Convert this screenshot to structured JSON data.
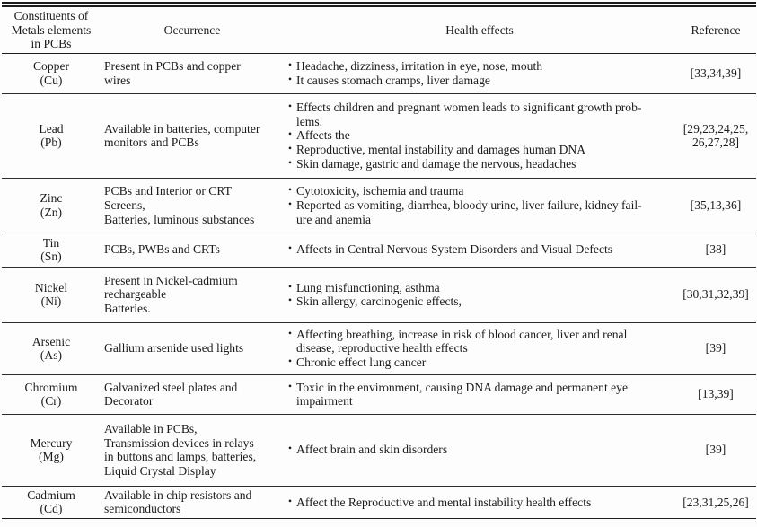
{
  "colors": {
    "text": "#1b1b1b",
    "rule": "#1c1c1c",
    "background": "#fdfdfd"
  },
  "bullet_glyph": "•",
  "table": {
    "columns": [
      {
        "label": "Constituents of\nMetals elements\nin PCBs"
      },
      {
        "label": "Occurrence"
      },
      {
        "label": "Health effects"
      },
      {
        "label": "Reference"
      }
    ],
    "rows": [
      {
        "metal": "Copper",
        "symbol": "(Cu)",
        "occurrence": "Present in PCBs and copper\nwires",
        "health_effects": [
          "Headache, dizziness, irritation in eye, nose, mouth",
          "It causes stomach cramps, liver damage"
        ],
        "reference": "[33,34,39]"
      },
      {
        "metal": "Lead",
        "symbol": "(Pb)",
        "occurrence": "Available in batteries, computer\nmonitors and PCBs",
        "health_effects": [
          "Effects children and pregnant women leads to significant growth prob-\nlems.",
          "Affects the",
          "Reproductive, mental instability and damages human DNA",
          "Skin damage, gastric and damage the nervous, headaches"
        ],
        "reference": "[29,23,24,25,\n26,27,28]"
      },
      {
        "metal": "Zinc",
        "symbol": "(Zn)",
        "occurrence": "PCBs and Interior or CRT\nScreens,\nBatteries, luminous substances",
        "health_effects": [
          "Cytotoxicity, ischemia and trauma",
          "Reported as vomiting, diarrhea, bloody urine, liver failure, kidney fail-\nure and anemia"
        ],
        "reference": "[35,13,36]"
      },
      {
        "metal": "Tin",
        "symbol": "(Sn)",
        "occurrence": "PCBs, PWBs and CRTs",
        "health_effects": [
          "Affects in Central Nervous System Disorders and Visual Defects"
        ],
        "reference": "[38]"
      },
      {
        "metal": "Nickel",
        "symbol": "(Ni)",
        "occurrence": "Present in Nickel-cadmium\nrechargeable\nBatteries.",
        "health_effects": [
          "Lung misfunctioning, asthma",
          "Skin allergy, carcinogenic effects,"
        ],
        "reference": "[30,31,32,39]"
      },
      {
        "metal": "Arsenic",
        "symbol": "(As)",
        "occurrence": "Gallium arsenide used lights",
        "health_effects": [
          "Affecting breathing, increase in risk of blood cancer, liver and renal\ndisease, reproductive health effects",
          "Chronic effect lung cancer"
        ],
        "reference": "[39]"
      },
      {
        "metal": "Chromium",
        "symbol": "(Cr)",
        "occurrence": "Galvanized steel plates and\nDecorator",
        "health_effects": [
          "Toxic in the environment, causing DNA damage and permanent eye\nimpairment"
        ],
        "reference": "[13,39]"
      },
      {
        "metal": "Mercury",
        "symbol": "(Mg)",
        "occurrence": "Available in PCBs,\nTransmission devices in relays\nin buttons and lamps, batteries,\nLiquid Crystal Display",
        "health_effects": [
          "Affect brain and skin disorders"
        ],
        "reference": "[39]"
      },
      {
        "metal": "Cadmium",
        "symbol": "(Cd)",
        "occurrence": "Available in chip resistors and\nsemiconductors",
        "health_effects": [
          "Affect the Reproductive and mental instability health effects"
        ],
        "reference": "[23,31,25,26]"
      }
    ]
  }
}
